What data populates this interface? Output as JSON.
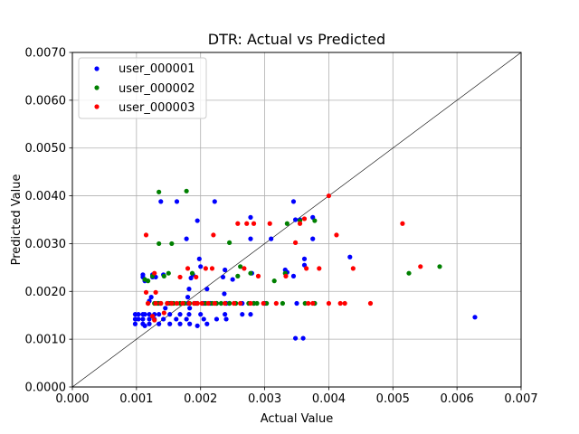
{
  "chart_data": {
    "type": "scatter",
    "title": "DTR: Actual vs Predicted",
    "xlabel": "Actual Value",
    "ylabel": "Predicted Value",
    "xlim": [
      0,
      0.007
    ],
    "ylim": [
      0,
      0.007
    ],
    "xticks": [
      "0.000",
      "0.001",
      "0.002",
      "0.003",
      "0.004",
      "0.005",
      "0.006",
      "0.007"
    ],
    "yticks": [
      "0.0000",
      "0.0010",
      "0.0020",
      "0.0030",
      "0.0040",
      "0.0050",
      "0.0060",
      "0.0070"
    ],
    "grid": true,
    "legend_position": "top-left",
    "reference_line": {
      "x": [
        0,
        0.007
      ],
      "y": [
        0,
        0.007
      ],
      "color": "#000000"
    },
    "series": [
      {
        "name": "user_000001",
        "color": "#0000ff",
        "points": [
          [
            0.00098,
            0.00152
          ],
          [
            0.00098,
            0.00142
          ],
          [
            0.00098,
            0.00132
          ],
          [
            0.00103,
            0.00152
          ],
          [
            0.00103,
            0.00142
          ],
          [
            0.0011,
            0.00152
          ],
          [
            0.0011,
            0.00142
          ],
          [
            0.0011,
            0.00132
          ],
          [
            0.00113,
            0.00152
          ],
          [
            0.00113,
            0.00128
          ],
          [
            0.0012,
            0.00152
          ],
          [
            0.0012,
            0.00142
          ],
          [
            0.0012,
            0.00132
          ],
          [
            0.00128,
            0.00152
          ],
          [
            0.00128,
            0.00142
          ],
          [
            0.00135,
            0.00152
          ],
          [
            0.00135,
            0.00132
          ],
          [
            0.00142,
            0.00142
          ],
          [
            0.00152,
            0.00152
          ],
          [
            0.00152,
            0.00132
          ],
          [
            0.00162,
            0.00142
          ],
          [
            0.00168,
            0.00152
          ],
          [
            0.00168,
            0.00132
          ],
          [
            0.00178,
            0.00142
          ],
          [
            0.00182,
            0.00152
          ],
          [
            0.00183,
            0.00132
          ],
          [
            0.00195,
            0.00128
          ],
          [
            0.002,
            0.00152
          ],
          [
            0.00205,
            0.00142
          ],
          [
            0.0021,
            0.00132
          ],
          [
            0.00225,
            0.00142
          ],
          [
            0.00238,
            0.00152
          ],
          [
            0.0024,
            0.00142
          ],
          [
            0.00265,
            0.00152
          ],
          [
            0.00278,
            0.00152
          ],
          [
            0.0011,
            0.0023
          ],
          [
            0.0011,
            0.00235
          ],
          [
            0.00113,
            0.00222
          ],
          [
            0.0012,
            0.0018
          ],
          [
            0.00123,
            0.00188
          ],
          [
            0.00125,
            0.0023
          ],
          [
            0.00125,
            0.00235
          ],
          [
            0.0013,
            0.0023
          ],
          [
            0.00135,
            0.00175
          ],
          [
            0.00138,
            0.00388
          ],
          [
            0.00142,
            0.00235
          ],
          [
            0.00145,
            0.00165
          ],
          [
            0.0015,
            0.00175
          ],
          [
            0.00155,
            0.00175
          ],
          [
            0.00163,
            0.00388
          ],
          [
            0.00168,
            0.00175
          ],
          [
            0.00178,
            0.0031
          ],
          [
            0.0018,
            0.00188
          ],
          [
            0.0018,
            0.00175
          ],
          [
            0.00182,
            0.00205
          ],
          [
            0.00183,
            0.00165
          ],
          [
            0.00185,
            0.00228
          ],
          [
            0.00188,
            0.00235
          ],
          [
            0.00193,
            0.00175
          ],
          [
            0.00195,
            0.00348
          ],
          [
            0.00198,
            0.00268
          ],
          [
            0.002,
            0.00252
          ],
          [
            0.00205,
            0.00175
          ],
          [
            0.0021,
            0.00205
          ],
          [
            0.00215,
            0.00175
          ],
          [
            0.00222,
            0.00388
          ],
          [
            0.00225,
            0.00175
          ],
          [
            0.00235,
            0.0023
          ],
          [
            0.00237,
            0.00195
          ],
          [
            0.00238,
            0.00245
          ],
          [
            0.0024,
            0.00175
          ],
          [
            0.00245,
            0.00175
          ],
          [
            0.0025,
            0.00225
          ],
          [
            0.00265,
            0.00175
          ],
          [
            0.00278,
            0.00355
          ],
          [
            0.00278,
            0.0031
          ],
          [
            0.0028,
            0.00238
          ],
          [
            0.00283,
            0.00175
          ],
          [
            0.003,
            0.00175
          ],
          [
            0.0031,
            0.0031
          ],
          [
            0.00332,
            0.00245
          ],
          [
            0.00335,
            0.0024
          ],
          [
            0.00345,
            0.00388
          ],
          [
            0.00345,
            0.00232
          ],
          [
            0.00348,
            0.0035
          ],
          [
            0.0035,
            0.00175
          ],
          [
            0.00355,
            0.0035
          ],
          [
            0.00362,
            0.00268
          ],
          [
            0.00362,
            0.00255
          ],
          [
            0.00375,
            0.00355
          ],
          [
            0.00375,
            0.0031
          ],
          [
            0.00378,
            0.00175
          ],
          [
            0.00348,
            0.00102
          ],
          [
            0.0036,
            0.00102
          ],
          [
            0.00433,
            0.00272
          ],
          [
            0.00628,
            0.00146
          ]
        ]
      },
      {
        "name": "user_000002",
        "color": "#008000",
        "points": [
          [
            0.00113,
            0.00225
          ],
          [
            0.00118,
            0.00222
          ],
          [
            0.00118,
            0.00175
          ],
          [
            0.00125,
            0.00232
          ],
          [
            0.00128,
            0.00175
          ],
          [
            0.00133,
            0.00175
          ],
          [
            0.00135,
            0.00408
          ],
          [
            0.00135,
            0.003
          ],
          [
            0.00138,
            0.00175
          ],
          [
            0.00143,
            0.00232
          ],
          [
            0.00148,
            0.00175
          ],
          [
            0.0015,
            0.00238
          ],
          [
            0.00153,
            0.00175
          ],
          [
            0.00155,
            0.003
          ],
          [
            0.00158,
            0.00175
          ],
          [
            0.00168,
            0.00175
          ],
          [
            0.00175,
            0.00175
          ],
          [
            0.00178,
            0.0041
          ],
          [
            0.00183,
            0.00175
          ],
          [
            0.00187,
            0.00238
          ],
          [
            0.0019,
            0.00175
          ],
          [
            0.00195,
            0.00175
          ],
          [
            0.00208,
            0.00175
          ],
          [
            0.00218,
            0.00175
          ],
          [
            0.00225,
            0.00175
          ],
          [
            0.00232,
            0.00175
          ],
          [
            0.00245,
            0.00175
          ],
          [
            0.00245,
            0.00302
          ],
          [
            0.00255,
            0.00175
          ],
          [
            0.00258,
            0.00232
          ],
          [
            0.00262,
            0.00252
          ],
          [
            0.00275,
            0.00175
          ],
          [
            0.00278,
            0.00238
          ],
          [
            0.00283,
            0.00175
          ],
          [
            0.00288,
            0.00175
          ],
          [
            0.00303,
            0.00175
          ],
          [
            0.00315,
            0.00222
          ],
          [
            0.00332,
            0.00238
          ],
          [
            0.00335,
            0.00342
          ],
          [
            0.00355,
            0.00348
          ],
          [
            0.00378,
            0.00348
          ],
          [
            0.00378,
            0.00175
          ],
          [
            0.00525,
            0.00238
          ],
          [
            0.00573,
            0.00252
          ],
          [
            0.00328,
            0.00175
          ],
          [
            0.00363,
            0.00175
          ]
        ]
      },
      {
        "name": "user_000003",
        "color": "#ff0000",
        "points": [
          [
            0.00115,
            0.00318
          ],
          [
            0.00115,
            0.00198
          ],
          [
            0.00118,
            0.00175
          ],
          [
            0.00125,
            0.00148
          ],
          [
            0.00128,
            0.00238
          ],
          [
            0.00128,
            0.0014
          ],
          [
            0.0013,
            0.00198
          ],
          [
            0.0013,
            0.00175
          ],
          [
            0.00138,
            0.00175
          ],
          [
            0.00143,
            0.00155
          ],
          [
            0.00148,
            0.00175
          ],
          [
            0.00155,
            0.00175
          ],
          [
            0.00163,
            0.00175
          ],
          [
            0.00168,
            0.0023
          ],
          [
            0.00172,
            0.00175
          ],
          [
            0.0018,
            0.00248
          ],
          [
            0.00182,
            0.00175
          ],
          [
            0.0019,
            0.00175
          ],
          [
            0.00193,
            0.0023
          ],
          [
            0.00195,
            0.00175
          ],
          [
            0.00202,
            0.00175
          ],
          [
            0.00208,
            0.00248
          ],
          [
            0.00212,
            0.00175
          ],
          [
            0.00218,
            0.00248
          ],
          [
            0.0022,
            0.00318
          ],
          [
            0.00222,
            0.00175
          ],
          [
            0.00238,
            0.00175
          ],
          [
            0.00252,
            0.00175
          ],
          [
            0.00258,
            0.00342
          ],
          [
            0.00262,
            0.00175
          ],
          [
            0.00268,
            0.00248
          ],
          [
            0.00272,
            0.00342
          ],
          [
            0.00278,
            0.00175
          ],
          [
            0.00283,
            0.00342
          ],
          [
            0.0029,
            0.00232
          ],
          [
            0.00298,
            0.00175
          ],
          [
            0.00308,
            0.00342
          ],
          [
            0.00318,
            0.00175
          ],
          [
            0.00333,
            0.00232
          ],
          [
            0.00348,
            0.00302
          ],
          [
            0.00355,
            0.00342
          ],
          [
            0.00362,
            0.00352
          ],
          [
            0.00365,
            0.00248
          ],
          [
            0.00368,
            0.00175
          ],
          [
            0.00375,
            0.00175
          ],
          [
            0.00385,
            0.00248
          ],
          [
            0.004,
            0.004
          ],
          [
            0.004,
            0.00175
          ],
          [
            0.00412,
            0.00318
          ],
          [
            0.00418,
            0.00175
          ],
          [
            0.00425,
            0.00175
          ],
          [
            0.00438,
            0.00248
          ],
          [
            0.00465,
            0.00175
          ],
          [
            0.00515,
            0.00342
          ],
          [
            0.00543,
            0.00252
          ]
        ]
      }
    ]
  }
}
